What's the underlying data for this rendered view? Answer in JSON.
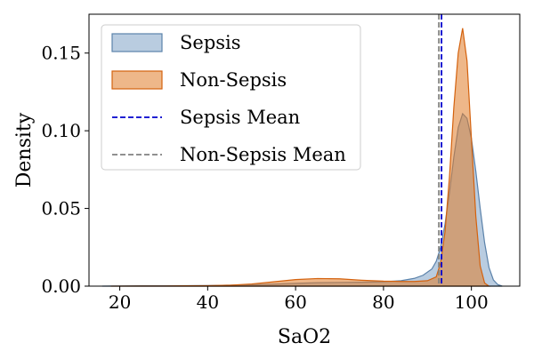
{
  "chart_data": {
    "type": "area",
    "xlabel": "SaO2",
    "ylabel": "Density",
    "xlim": [
      13,
      111
    ],
    "ylim": [
      0,
      0.175
    ],
    "xticks": [
      {
        "value": 20,
        "label": "20"
      },
      {
        "value": 40,
        "label": "40"
      },
      {
        "value": 60,
        "label": "60"
      },
      {
        "value": 80,
        "label": "80"
      },
      {
        "value": 100,
        "label": "100"
      }
    ],
    "yticks": [
      {
        "value": 0,
        "label": "0.00"
      },
      {
        "value": 0.05,
        "label": "0.05"
      },
      {
        "value": 0.1,
        "label": "0.10"
      },
      {
        "value": 0.15,
        "label": "0.15"
      }
    ],
    "grid": false,
    "legend": {
      "position": "top-left",
      "entries": [
        {
          "label": "Sepsis",
          "kind": "fill",
          "color": "#7fa3c6"
        },
        {
          "label": "Non-Sepsis",
          "kind": "fill",
          "color": "#e07b28"
        },
        {
          "label": "Sepsis Mean",
          "kind": "dashed",
          "color": "#0000cc"
        },
        {
          "label": "Non-Sepsis Mean",
          "kind": "dashed",
          "color": "#808080"
        }
      ]
    },
    "series": [
      {
        "name": "Sepsis",
        "color": "#7fa3c6",
        "edge_color": "#5b82aa",
        "x": [
          16,
          20,
          25,
          30,
          35,
          40,
          45,
          50,
          55,
          60,
          65,
          70,
          75,
          80,
          84,
          87,
          89,
          91,
          92,
          93,
          94,
          95,
          96,
          97,
          98,
          99,
          100,
          101,
          102,
          103,
          104,
          105,
          106,
          107
        ],
        "y": [
          0.0,
          0.0001,
          0.0002,
          0.0002,
          0.0003,
          0.0004,
          0.0006,
          0.0009,
          0.0013,
          0.0018,
          0.0022,
          0.0024,
          0.0025,
          0.0028,
          0.0035,
          0.005,
          0.007,
          0.011,
          0.016,
          0.025,
          0.04,
          0.06,
          0.083,
          0.102,
          0.111,
          0.108,
          0.095,
          0.074,
          0.05,
          0.028,
          0.012,
          0.004,
          0.001,
          0.0
        ]
      },
      {
        "name": "Non-Sepsis",
        "color": "#e07b28",
        "edge_color": "#d4620e",
        "x": [
          18,
          25,
          30,
          35,
          40,
          45,
          50,
          55,
          60,
          65,
          70,
          75,
          80,
          84,
          87,
          90,
          92,
          93,
          94,
          95,
          96,
          97,
          98,
          99,
          100,
          101,
          102,
          103,
          104
        ],
        "y": [
          0.0,
          0.0001,
          0.0001,
          0.0002,
          0.0003,
          0.0006,
          0.0014,
          0.0028,
          0.0042,
          0.0049,
          0.0047,
          0.0038,
          0.0032,
          0.003,
          0.003,
          0.0035,
          0.006,
          0.015,
          0.035,
          0.07,
          0.115,
          0.15,
          0.166,
          0.145,
          0.095,
          0.045,
          0.013,
          0.002,
          0.0
        ]
      }
    ],
    "reference_lines": [
      {
        "name": "Sepsis Mean",
        "x": 93.2,
        "color": "#0000cc"
      },
      {
        "name": "Non-Sepsis Mean",
        "x": 92.6,
        "color": "#808080"
      }
    ]
  }
}
